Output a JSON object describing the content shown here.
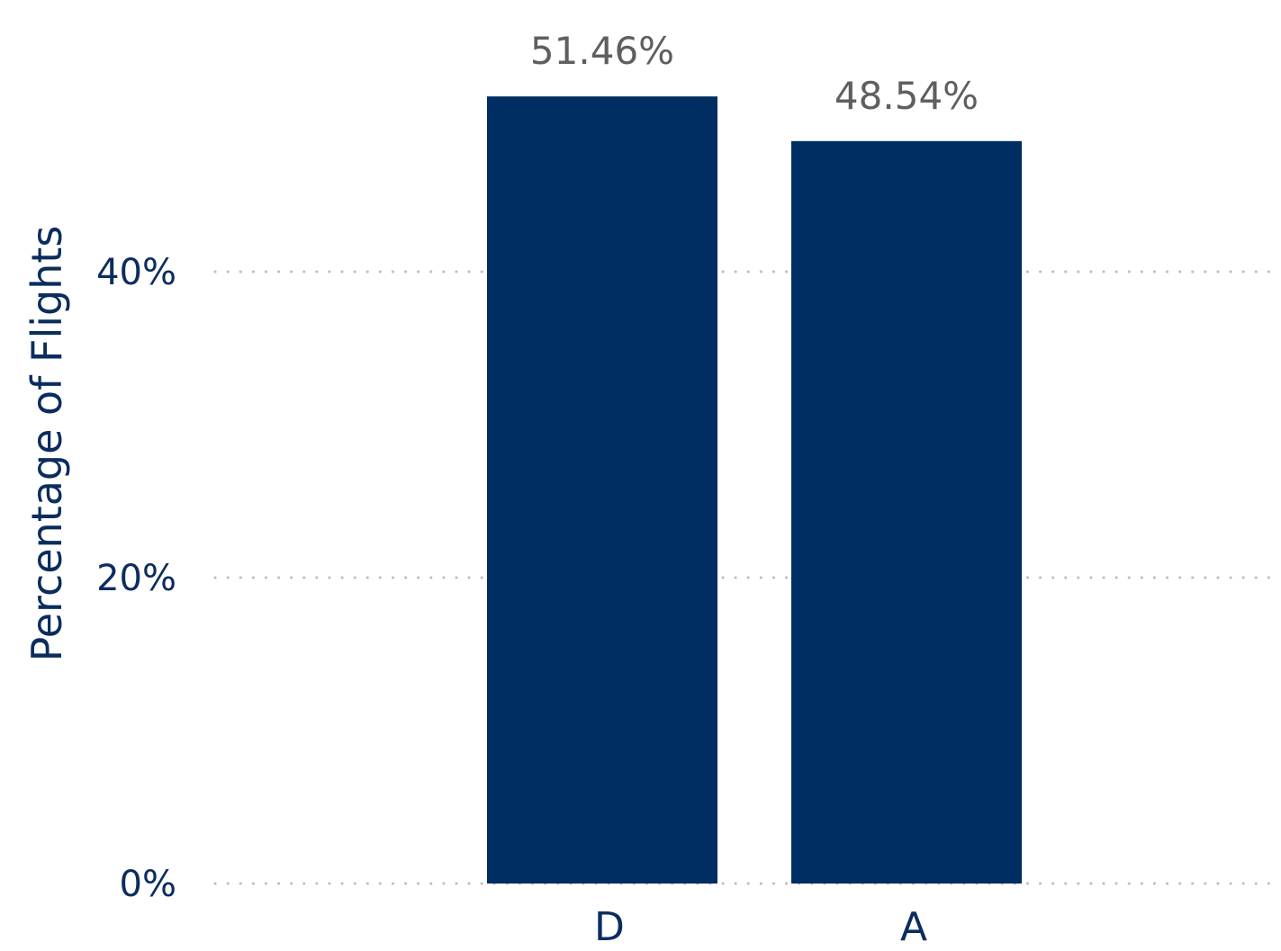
{
  "chart_data": {
    "type": "bar",
    "categories": [
      "D",
      "A"
    ],
    "values": [
      51.46,
      48.54
    ],
    "data_labels": [
      "51.46%",
      "48.54%"
    ],
    "title": "",
    "xlabel": "",
    "ylabel": "Percentage of Flights",
    "ylim": [
      0,
      56
    ],
    "yticks": [
      0,
      20,
      40
    ],
    "ytick_labels": [
      "0%",
      "20%",
      "40%"
    ],
    "grid": "horizontal-dotted",
    "legend": "none",
    "colors": {
      "bar": "#002d62",
      "axis_text": "#0b2d5e",
      "data_label": "#5f5f5f",
      "grid": "#bdbdbd"
    }
  }
}
